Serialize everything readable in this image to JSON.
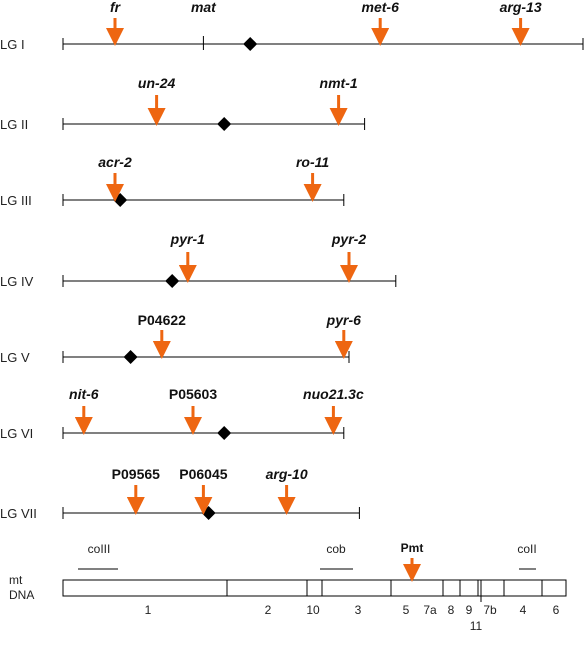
{
  "colors": {
    "line": "#000000",
    "arrow": "#ee6611",
    "centromere": "#000000"
  },
  "linkage_groups": [
    {
      "label": "LG I",
      "start": 0,
      "end": 100,
      "centromere": 36,
      "ticks": [
        27
      ],
      "markers": [
        {
          "name": "fr",
          "pos": 10,
          "italic": true,
          "arrow": true
        },
        {
          "name": "mat",
          "pos": 27,
          "italic": true,
          "arrow": false
        },
        {
          "name": "met-6",
          "pos": 61,
          "italic": true,
          "arrow": true
        },
        {
          "name": "arg-13",
          "pos": 88,
          "italic": true,
          "arrow": true
        }
      ]
    },
    {
      "label": "LG II",
      "start": 0,
      "end": 58,
      "centromere": 31,
      "ticks": [],
      "markers": [
        {
          "name": "un-24",
          "pos": 18,
          "italic": true,
          "arrow": true
        },
        {
          "name": "nmt-1",
          "pos": 53,
          "italic": true,
          "arrow": true
        }
      ]
    },
    {
      "label": "LG III",
      "start": 0,
      "end": 54,
      "centromere": 11,
      "ticks": [],
      "markers": [
        {
          "name": "acr-2",
          "pos": 10,
          "italic": true,
          "arrow": true
        },
        {
          "name": "ro-11",
          "pos": 48,
          "italic": true,
          "arrow": true
        }
      ]
    },
    {
      "label": "LG IV",
      "start": 0,
      "end": 64,
      "centromere": 21,
      "ticks": [],
      "markers": [
        {
          "name": "pyr-1",
          "pos": 24,
          "italic": true,
          "arrow": true
        },
        {
          "name": "pyr-2",
          "pos": 55,
          "italic": true,
          "arrow": true
        }
      ]
    },
    {
      "label": "LG V",
      "start": 0,
      "end": 55,
      "centromere": 13,
      "ticks": [],
      "markers": [
        {
          "name": "P04622",
          "pos": 19,
          "italic": false,
          "arrow": true
        },
        {
          "name": "pyr-6",
          "pos": 54,
          "italic": true,
          "arrow": true
        }
      ]
    },
    {
      "label": "LG VI",
      "start": 0,
      "end": 54,
      "centromere": 31,
      "ticks": [],
      "markers": [
        {
          "name": "nit-6",
          "pos": 4,
          "italic": true,
          "arrow": true
        },
        {
          "name": "P05603",
          "pos": 25,
          "italic": false,
          "arrow": true
        },
        {
          "name": "nuo21.3c",
          "pos": 52,
          "italic": true,
          "arrow": true
        }
      ]
    },
    {
      "label": "LG VII",
      "start": 0,
      "end": 57,
      "centromere": 28,
      "ticks": [],
      "markers": [
        {
          "name": "P09565",
          "pos": 14,
          "italic": false,
          "arrow": true
        },
        {
          "name": "P06045",
          "pos": 27,
          "italic": false,
          "arrow": true
        },
        {
          "name": "arg-10",
          "pos": 43,
          "italic": true,
          "arrow": true
        }
      ]
    }
  ],
  "mtdna": {
    "label_line1": "mt",
    "label_line2": "DNA",
    "segments": [
      "1",
      "2",
      "10",
      "3",
      "5",
      "7a",
      "8",
      "9",
      "11",
      "7b",
      "4",
      "6"
    ],
    "regions": [
      {
        "name": "coIII"
      },
      {
        "name": "cob"
      },
      {
        "name": "coII"
      }
    ],
    "pmt": {
      "name": "Pmt",
      "arrow": true
    }
  }
}
